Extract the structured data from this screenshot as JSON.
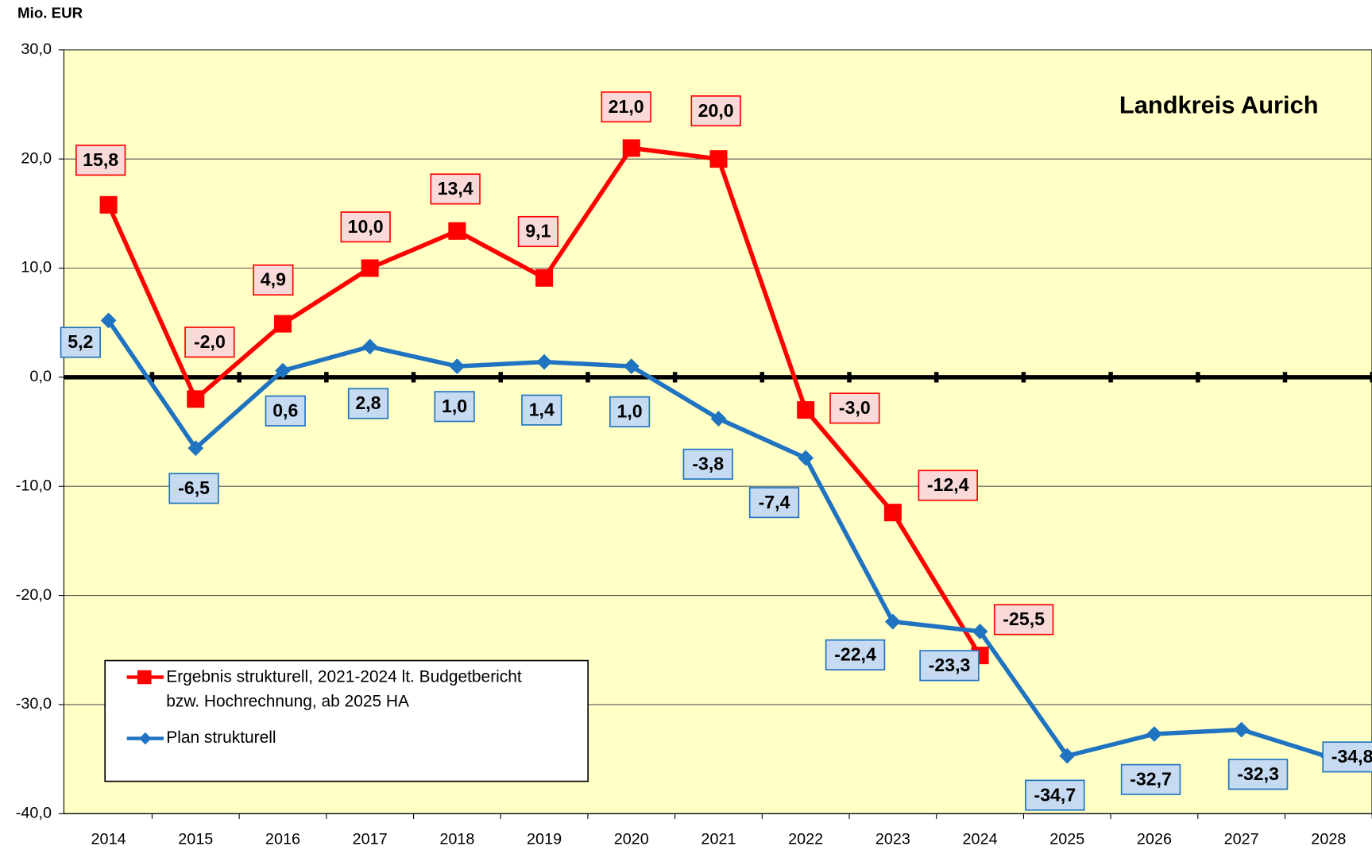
{
  "chart_data": {
    "type": "line",
    "title": "Landkreis Aurich",
    "y_axis_label": "Mio. EUR",
    "categories": [
      "2014",
      "2015",
      "2016",
      "2017",
      "2018",
      "2019",
      "2020",
      "2021",
      "2022",
      "2023",
      "2024",
      "2025",
      "2026",
      "2027",
      "2028"
    ],
    "series": [
      {
        "name": "Ergebnis strukturell, 2021-2024 lt. Budgetbericht bzw. Hochrechnung, ab 2025 HA",
        "color": "#ff0000",
        "marker": "square",
        "values": [
          15.8,
          -2.0,
          4.9,
          10.0,
          13.4,
          9.1,
          21.0,
          20.0,
          -3.0,
          -12.4,
          -25.5,
          null,
          null,
          null,
          null
        ],
        "value_labels": [
          "15,8",
          "-2,0",
          "4,9",
          "10,0",
          "13,4",
          "9,1",
          "21,0",
          "20,0",
          "-3,0",
          "-12,4",
          "-25,5",
          null,
          null,
          null,
          null
        ]
      },
      {
        "name": "Plan strukturell",
        "color": "#1f73c0",
        "marker": "diamond",
        "values": [
          5.2,
          -6.5,
          0.6,
          2.8,
          1.0,
          1.4,
          1.0,
          -3.8,
          -7.4,
          -22.4,
          -23.3,
          -34.7,
          -32.7,
          -32.3,
          -34.8
        ],
        "value_labels": [
          "5,2",
          "-6,5",
          "0,6",
          "2,8",
          "1,0",
          "1,4",
          "1,0",
          "-3,8",
          "-7,4",
          "-22,4",
          "-23,3",
          "-34,7",
          "-32,7",
          "-32,3",
          "-34,8"
        ]
      }
    ],
    "ylim": [
      -40,
      30
    ],
    "yticks": [
      {
        "value": -40,
        "label": "-40,0"
      },
      {
        "value": -30,
        "label": "-30,0"
      },
      {
        "value": -20,
        "label": "-20,0"
      },
      {
        "value": -10,
        "label": "-10,0"
      },
      {
        "value": 0,
        "label": "0,0"
      },
      {
        "value": 10,
        "label": "10,0"
      },
      {
        "value": 20,
        "label": "20,0"
      },
      {
        "value": 30,
        "label": "30,0"
      }
    ],
    "grid": true,
    "legend": "lower left"
  }
}
